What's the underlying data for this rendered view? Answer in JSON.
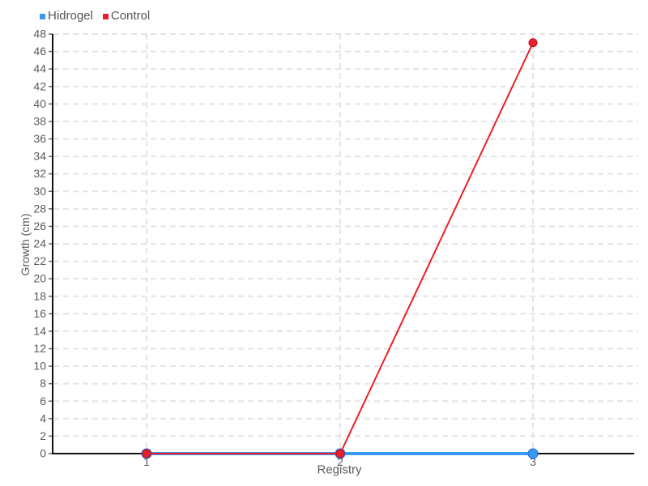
{
  "chart_data": {
    "type": "line",
    "title": "",
    "xlabel": "Registry",
    "ylabel": "Growth (cm)",
    "categories": [
      "1",
      "2",
      "3"
    ],
    "series": [
      {
        "name": "Hidrogel",
        "color": "#3B99F0",
        "point_stroke": "#1F6FD0",
        "line_width": 4,
        "point_radius": 6,
        "values": [
          0,
          0,
          0
        ]
      },
      {
        "name": "Control",
        "color": "#E9202C",
        "point_stroke": "#C2131F",
        "line_width": 2,
        "point_radius": 5,
        "values": [
          0,
          0,
          47
        ]
      }
    ],
    "ylim": [
      0,
      48
    ],
    "ytick_step": 2,
    "grid": "dashed",
    "legend_position": "top-left",
    "colors": {
      "text": "#5A5A5A",
      "grid": "#E4E4E4",
      "axis": "#111111",
      "tick": "#666666"
    }
  }
}
